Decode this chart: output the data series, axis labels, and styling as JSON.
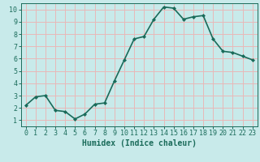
{
  "x": [
    0,
    1,
    2,
    3,
    4,
    5,
    6,
    7,
    8,
    9,
    10,
    11,
    12,
    13,
    14,
    15,
    16,
    17,
    18,
    19,
    20,
    21,
    22,
    23
  ],
  "y": [
    2.2,
    2.9,
    3.0,
    1.8,
    1.7,
    1.1,
    1.5,
    2.3,
    2.4,
    4.2,
    5.9,
    7.6,
    7.8,
    9.2,
    10.2,
    10.1,
    9.2,
    9.4,
    9.5,
    7.6,
    6.6,
    6.5,
    6.2,
    5.9
  ],
  "line_color": "#1a6b5a",
  "marker": "D",
  "marker_size": 2,
  "background_color": "#c8eaea",
  "grid_color": "#e8b8b8",
  "xlabel": "Humidex (Indice chaleur)",
  "xlim": [
    -0.5,
    23.5
  ],
  "ylim": [
    0.5,
    10.5
  ],
  "yticks": [
    1,
    2,
    3,
    4,
    5,
    6,
    7,
    8,
    9,
    10
  ],
  "xticks": [
    0,
    1,
    2,
    3,
    4,
    5,
    6,
    7,
    8,
    9,
    10,
    11,
    12,
    13,
    14,
    15,
    16,
    17,
    18,
    19,
    20,
    21,
    22,
    23
  ],
  "xlabel_fontsize": 7,
  "tick_fontsize": 6,
  "line_width": 1.2
}
